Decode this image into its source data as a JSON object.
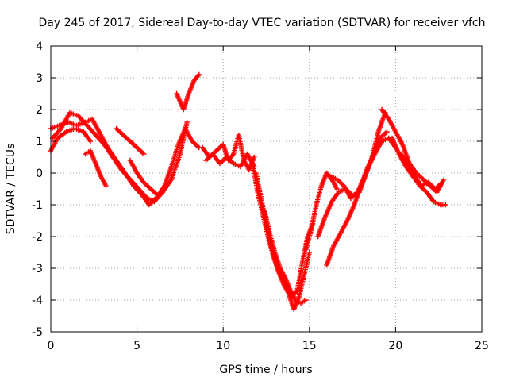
{
  "chart_data": {
    "type": "scatter",
    "title": "Day 245 of 2017, Sidereal Day-to-day VTEC variation (SDTVAR) for receiver vfch",
    "xlabel": "GPS time / hours",
    "ylabel": "SDTVAR / TECUs",
    "xlim": [
      0,
      25
    ],
    "ylim": [
      -5,
      4
    ],
    "xticks": [
      0,
      5,
      10,
      15,
      20,
      25
    ],
    "yticks": [
      -5,
      -4,
      -3,
      -2,
      -1,
      0,
      1,
      2,
      3,
      4
    ],
    "grid": true,
    "marker": "plus",
    "color": "#ff0000",
    "series": [
      {
        "x": [
          0.0,
          0.5,
          1.0,
          1.5,
          2.0,
          2.4,
          2.8,
          3.3,
          3.8,
          4.3,
          4.8,
          5.3,
          5.7,
          6.1,
          6.6,
          7.0,
          7.4,
          7.8,
          8.2,
          8.6
        ],
        "y": [
          1.4,
          1.5,
          1.6,
          1.5,
          1.6,
          1.7,
          1.3,
          0.8,
          0.4,
          0.0,
          -0.4,
          -0.7,
          -1.0,
          -0.8,
          -0.4,
          0.2,
          0.9,
          1.4,
          1.0,
          0.8
        ]
      },
      {
        "x": [
          0.1,
          0.6,
          1.1,
          1.6,
          2.1,
          2.6,
          3.1,
          3.6,
          4.1,
          4.6,
          5.1,
          5.6,
          6.0,
          6.5,
          7.0,
          7.5,
          7.9
        ],
        "y": [
          1.1,
          1.4,
          1.9,
          1.8,
          1.5,
          1.2,
          0.9,
          0.5,
          0.1,
          -0.2,
          -0.5,
          -0.8,
          -0.9,
          -0.6,
          -0.2,
          0.6,
          1.6
        ]
      },
      {
        "x": [
          0.0,
          0.4,
          0.9,
          1.4,
          1.9,
          2.3
        ],
        "y": [
          0.7,
          1.1,
          1.3,
          1.4,
          1.3,
          1.0
        ]
      },
      {
        "x": [
          2.0,
          2.3,
          2.6,
          2.9,
          3.2
        ],
        "y": [
          0.6,
          0.7,
          0.3,
          -0.1,
          -0.4
        ]
      },
      {
        "x": [
          3.8,
          4.2,
          4.6,
          5.0,
          5.4
        ],
        "y": [
          1.4,
          1.2,
          1.0,
          0.8,
          0.6
        ]
      },
      {
        "x": [
          4.6,
          5.0,
          5.4,
          5.8,
          6.2
        ],
        "y": [
          0.4,
          0.0,
          -0.3,
          -0.5,
          -0.7
        ]
      },
      {
        "x": [
          7.3,
          7.7,
          8.0,
          8.3,
          8.6
        ],
        "y": [
          2.5,
          2.0,
          2.5,
          2.9,
          3.1
        ]
      },
      {
        "x": [
          8.8,
          9.2,
          9.6,
          10.0,
          10.3,
          10.6,
          10.9,
          11.2,
          11.5,
          11.8
        ],
        "y": [
          0.8,
          0.5,
          0.7,
          0.9,
          0.4,
          0.6,
          1.2,
          0.4,
          0.1,
          0.5
        ]
      },
      {
        "x": [
          9.0,
          9.4,
          9.8,
          10.2,
          10.6,
          11.0,
          11.4,
          11.8
        ],
        "y": [
          0.4,
          0.6,
          0.3,
          0.5,
          0.3,
          0.2,
          0.6,
          0.2
        ]
      },
      {
        "x": [
          11.9,
          12.2,
          12.5,
          12.8,
          13.1,
          13.4,
          13.7,
          14.0,
          14.3,
          14.6,
          14.9,
          15.2
        ],
        "y": [
          0.0,
          -0.8,
          -1.6,
          -2.3,
          -2.9,
          -3.3,
          -3.6,
          -3.9,
          -3.7,
          -2.8,
          -2.0,
          -1.6
        ]
      },
      {
        "x": [
          11.7,
          12.0,
          12.3,
          12.6,
          12.9,
          13.2,
          13.5,
          13.8,
          14.1,
          14.4,
          14.7,
          15.0
        ],
        "y": [
          0.3,
          -0.6,
          -1.3,
          -2.0,
          -2.6,
          -3.1,
          -3.5,
          -3.8,
          -4.3,
          -3.9,
          -3.2,
          -2.5
        ]
      },
      {
        "x": [
          12.4,
          12.7,
          13.0,
          13.3,
          13.6,
          13.9,
          14.2,
          14.5,
          14.8
        ],
        "y": [
          -1.2,
          -1.9,
          -2.5,
          -3.0,
          -3.3,
          -3.7,
          -4.0,
          -4.1,
          -4.0
        ]
      },
      {
        "x": [
          14.8,
          15.1,
          15.4,
          15.7,
          16.0,
          16.3,
          16.6
        ],
        "y": [
          -2.4,
          -1.8,
          -1.0,
          -0.4,
          0.0,
          -0.2,
          -0.5
        ]
      },
      {
        "x": [
          15.5,
          15.9,
          16.3,
          16.7,
          17.1,
          17.5,
          17.9,
          18.3,
          18.7,
          19.1,
          19.5
        ],
        "y": [
          -2.0,
          -1.4,
          -0.9,
          -0.6,
          -0.5,
          -0.7,
          -0.6,
          0.0,
          0.6,
          1.1,
          1.3
        ]
      },
      {
        "x": [
          16.0,
          16.4,
          16.8,
          17.2,
          17.6,
          18.0,
          18.4,
          18.8,
          19.2,
          19.6,
          20.0
        ],
        "y": [
          -2.9,
          -2.3,
          -1.9,
          -1.5,
          -1.0,
          -0.4,
          0.2,
          0.6,
          1.0,
          1.1,
          0.8
        ]
      },
      {
        "x": [
          16.2,
          16.6,
          17.0,
          17.4,
          17.8,
          18.2,
          18.6,
          19.0,
          19.4
        ],
        "y": [
          -0.1,
          -0.2,
          -0.4,
          -0.8,
          -0.6,
          -0.1,
          0.4,
          1.3,
          1.9
        ]
      },
      {
        "x": [
          19.2,
          19.6,
          20.0,
          20.4,
          20.8,
          21.2,
          21.6,
          22.0,
          22.4,
          22.8
        ],
        "y": [
          2.0,
          1.7,
          1.3,
          0.9,
          0.3,
          0.0,
          -0.2,
          -0.4,
          -0.6,
          -0.2
        ]
      },
      {
        "x": [
          19.8,
          20.2,
          20.6,
          21.0,
          21.4,
          21.8,
          22.2,
          22.6,
          22.9
        ],
        "y": [
          1.1,
          0.6,
          0.2,
          -0.1,
          -0.4,
          -0.6,
          -0.9,
          -1.0,
          -1.0
        ]
      },
      {
        "x": [
          20.3,
          20.7,
          21.1,
          21.5,
          21.9,
          22.3,
          22.7
        ],
        "y": [
          0.6,
          0.3,
          -0.1,
          -0.4,
          -0.3,
          -0.5,
          -0.3
        ]
      }
    ]
  }
}
